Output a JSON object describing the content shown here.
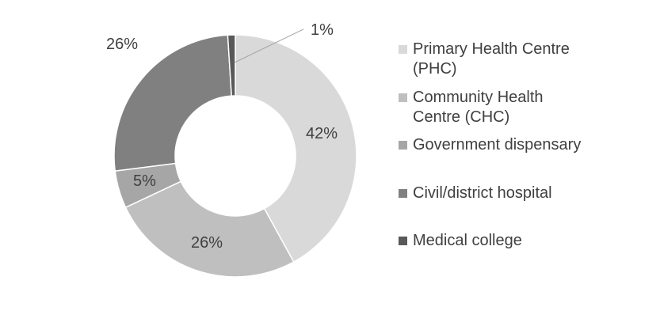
{
  "chart_data": {
    "type": "pie",
    "donut": true,
    "slices": [
      {
        "label": "Primary Health Centre (PHC)",
        "value": 42,
        "display": "42%",
        "color": "#d9d9d9"
      },
      {
        "label": "Community Health Centre (CHC)",
        "value": 26,
        "display": "26%",
        "color": "#bfbfbf"
      },
      {
        "label": "Government dispensary",
        "value": 5,
        "display": "5%",
        "color": "#a6a6a6"
      },
      {
        "label": "Civil/district hospital",
        "value": 26,
        "display": "26%",
        "color": "#808080"
      },
      {
        "label": "Medical college",
        "value": 1,
        "display": "1%",
        "color": "#595959"
      }
    ],
    "legend_position": "right"
  }
}
